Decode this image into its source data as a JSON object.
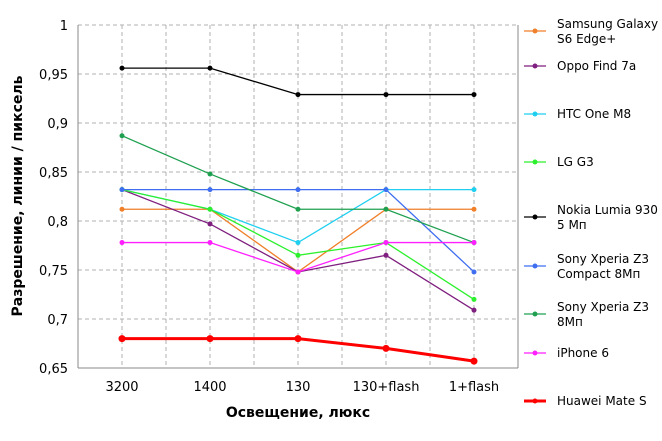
{
  "chart_data": {
    "type": "line",
    "title": "",
    "xlabel": "Освещение,  люкс",
    "ylabel": "Разрешение,  линии / пиксель",
    "categories": [
      "3200",
      "1400",
      "130",
      "130+flash",
      "1+flash"
    ],
    "ylim": [
      0.65,
      1
    ],
    "yticks": [
      "0,65",
      "0,7",
      "0,75",
      "0,8",
      "0,85",
      "0,9",
      "0,95",
      "1"
    ],
    "grid": true,
    "legend_placement": "right",
    "series": [
      {
        "name": "Samsung Galaxy S6 Edge+",
        "color": "#f07f2a",
        "values": [
          0.812,
          0.812,
          0.748,
          0.812,
          0.812
        ]
      },
      {
        "name": "Oppo Find 7a",
        "color": "#7f1f7f",
        "values": [
          0.832,
          0.797,
          0.748,
          0.765,
          0.709
        ]
      },
      {
        "name": "HTC One M8",
        "color": "#1fcff0",
        "values": [
          0.832,
          0.812,
          0.778,
          0.832,
          0.832
        ]
      },
      {
        "name": "LG G3",
        "color": "#2cf02c",
        "values": [
          0.832,
          0.812,
          0.765,
          0.778,
          0.72
        ]
      },
      {
        "name": "Nokia Lumia 930 5 Мп",
        "color": "#000000",
        "values": [
          0.956,
          0.956,
          0.929,
          0.929,
          0.929
        ]
      },
      {
        "name": "Sony Xperia Z3 Compact 8Мп",
        "color": "#3f6ff0",
        "values": [
          0.832,
          0.832,
          0.832,
          0.832,
          0.748
        ]
      },
      {
        "name": "Sony Xperia Z3 8Мп",
        "color": "#1fa050",
        "values": [
          0.887,
          0.848,
          0.812,
          0.812,
          0.778
        ]
      },
      {
        "name": "iPhone 6",
        "color": "#ff1fff",
        "values": [
          0.778,
          0.778,
          0.748,
          0.778,
          0.778
        ]
      },
      {
        "name": "Huawei Mate S",
        "color": "#ff0000",
        "values": [
          0.68,
          0.68,
          0.68,
          0.67,
          0.657
        ]
      }
    ],
    "legend_lines": [
      [
        "Samsung Galaxy",
        "S6 Edge+"
      ],
      [
        "Oppo Find 7a"
      ],
      [
        "HTC One M8"
      ],
      [
        "LG G3"
      ],
      [
        "Nokia Lumia 930",
        "5 Мп"
      ],
      [
        "Sony Xperia Z3",
        "Compact 8Мп"
      ],
      [
        "Sony Xperia Z3",
        "8Мп"
      ],
      [
        "iPhone 6"
      ],
      [
        "Huawei Mate S"
      ]
    ]
  }
}
